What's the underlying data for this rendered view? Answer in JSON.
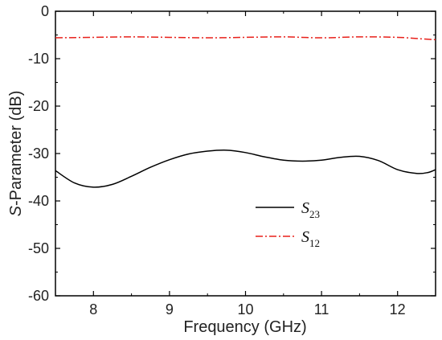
{
  "chart_data": {
    "type": "line",
    "xlabel": "Frequency (GHz)",
    "ylabel_italic": "S",
    "ylabel_rest": "-Parameter (dB)",
    "xlim": [
      7.5,
      12.5
    ],
    "ylim": [
      -60,
      0
    ],
    "x_ticks": [
      8,
      9,
      10,
      11,
      12
    ],
    "x_tick_labels": [
      "8",
      "9",
      "10",
      "11",
      "12"
    ],
    "y_ticks": [
      0,
      -10,
      -20,
      -30,
      -40,
      -50,
      -60
    ],
    "y_tick_labels": [
      "0",
      "-10",
      "-20",
      "-30",
      "-40",
      "-50",
      "-60"
    ],
    "grid": false,
    "legend_position": "center",
    "series": [
      {
        "name": "S23",
        "name_main": "S",
        "name_sub": "23",
        "color": "#000000",
        "style": "solid",
        "x": [
          7.5,
          7.75,
          8.0,
          8.25,
          8.5,
          8.75,
          9.0,
          9.25,
          9.5,
          9.75,
          10.0,
          10.25,
          10.5,
          10.75,
          11.0,
          11.25,
          11.5,
          11.75,
          12.0,
          12.25,
          12.4,
          12.5
        ],
        "y": [
          -33.6,
          -36.2,
          -37.1,
          -36.5,
          -34.8,
          -32.9,
          -31.3,
          -30.1,
          -29.5,
          -29.3,
          -29.8,
          -30.7,
          -31.4,
          -31.6,
          -31.4,
          -30.8,
          -30.6,
          -31.5,
          -33.4,
          -34.2,
          -34.0,
          -33.4
        ]
      },
      {
        "name": "S12",
        "name_main": "S",
        "name_sub": "12",
        "color": "#e8201a",
        "style": "dashdot",
        "x": [
          7.5,
          8.0,
          8.5,
          9.0,
          9.5,
          10.0,
          10.5,
          11.0,
          11.5,
          12.0,
          12.3,
          12.5
        ],
        "y": [
          -5.6,
          -5.5,
          -5.4,
          -5.5,
          -5.6,
          -5.5,
          -5.4,
          -5.6,
          -5.4,
          -5.5,
          -5.8,
          -6.0
        ]
      }
    ]
  }
}
